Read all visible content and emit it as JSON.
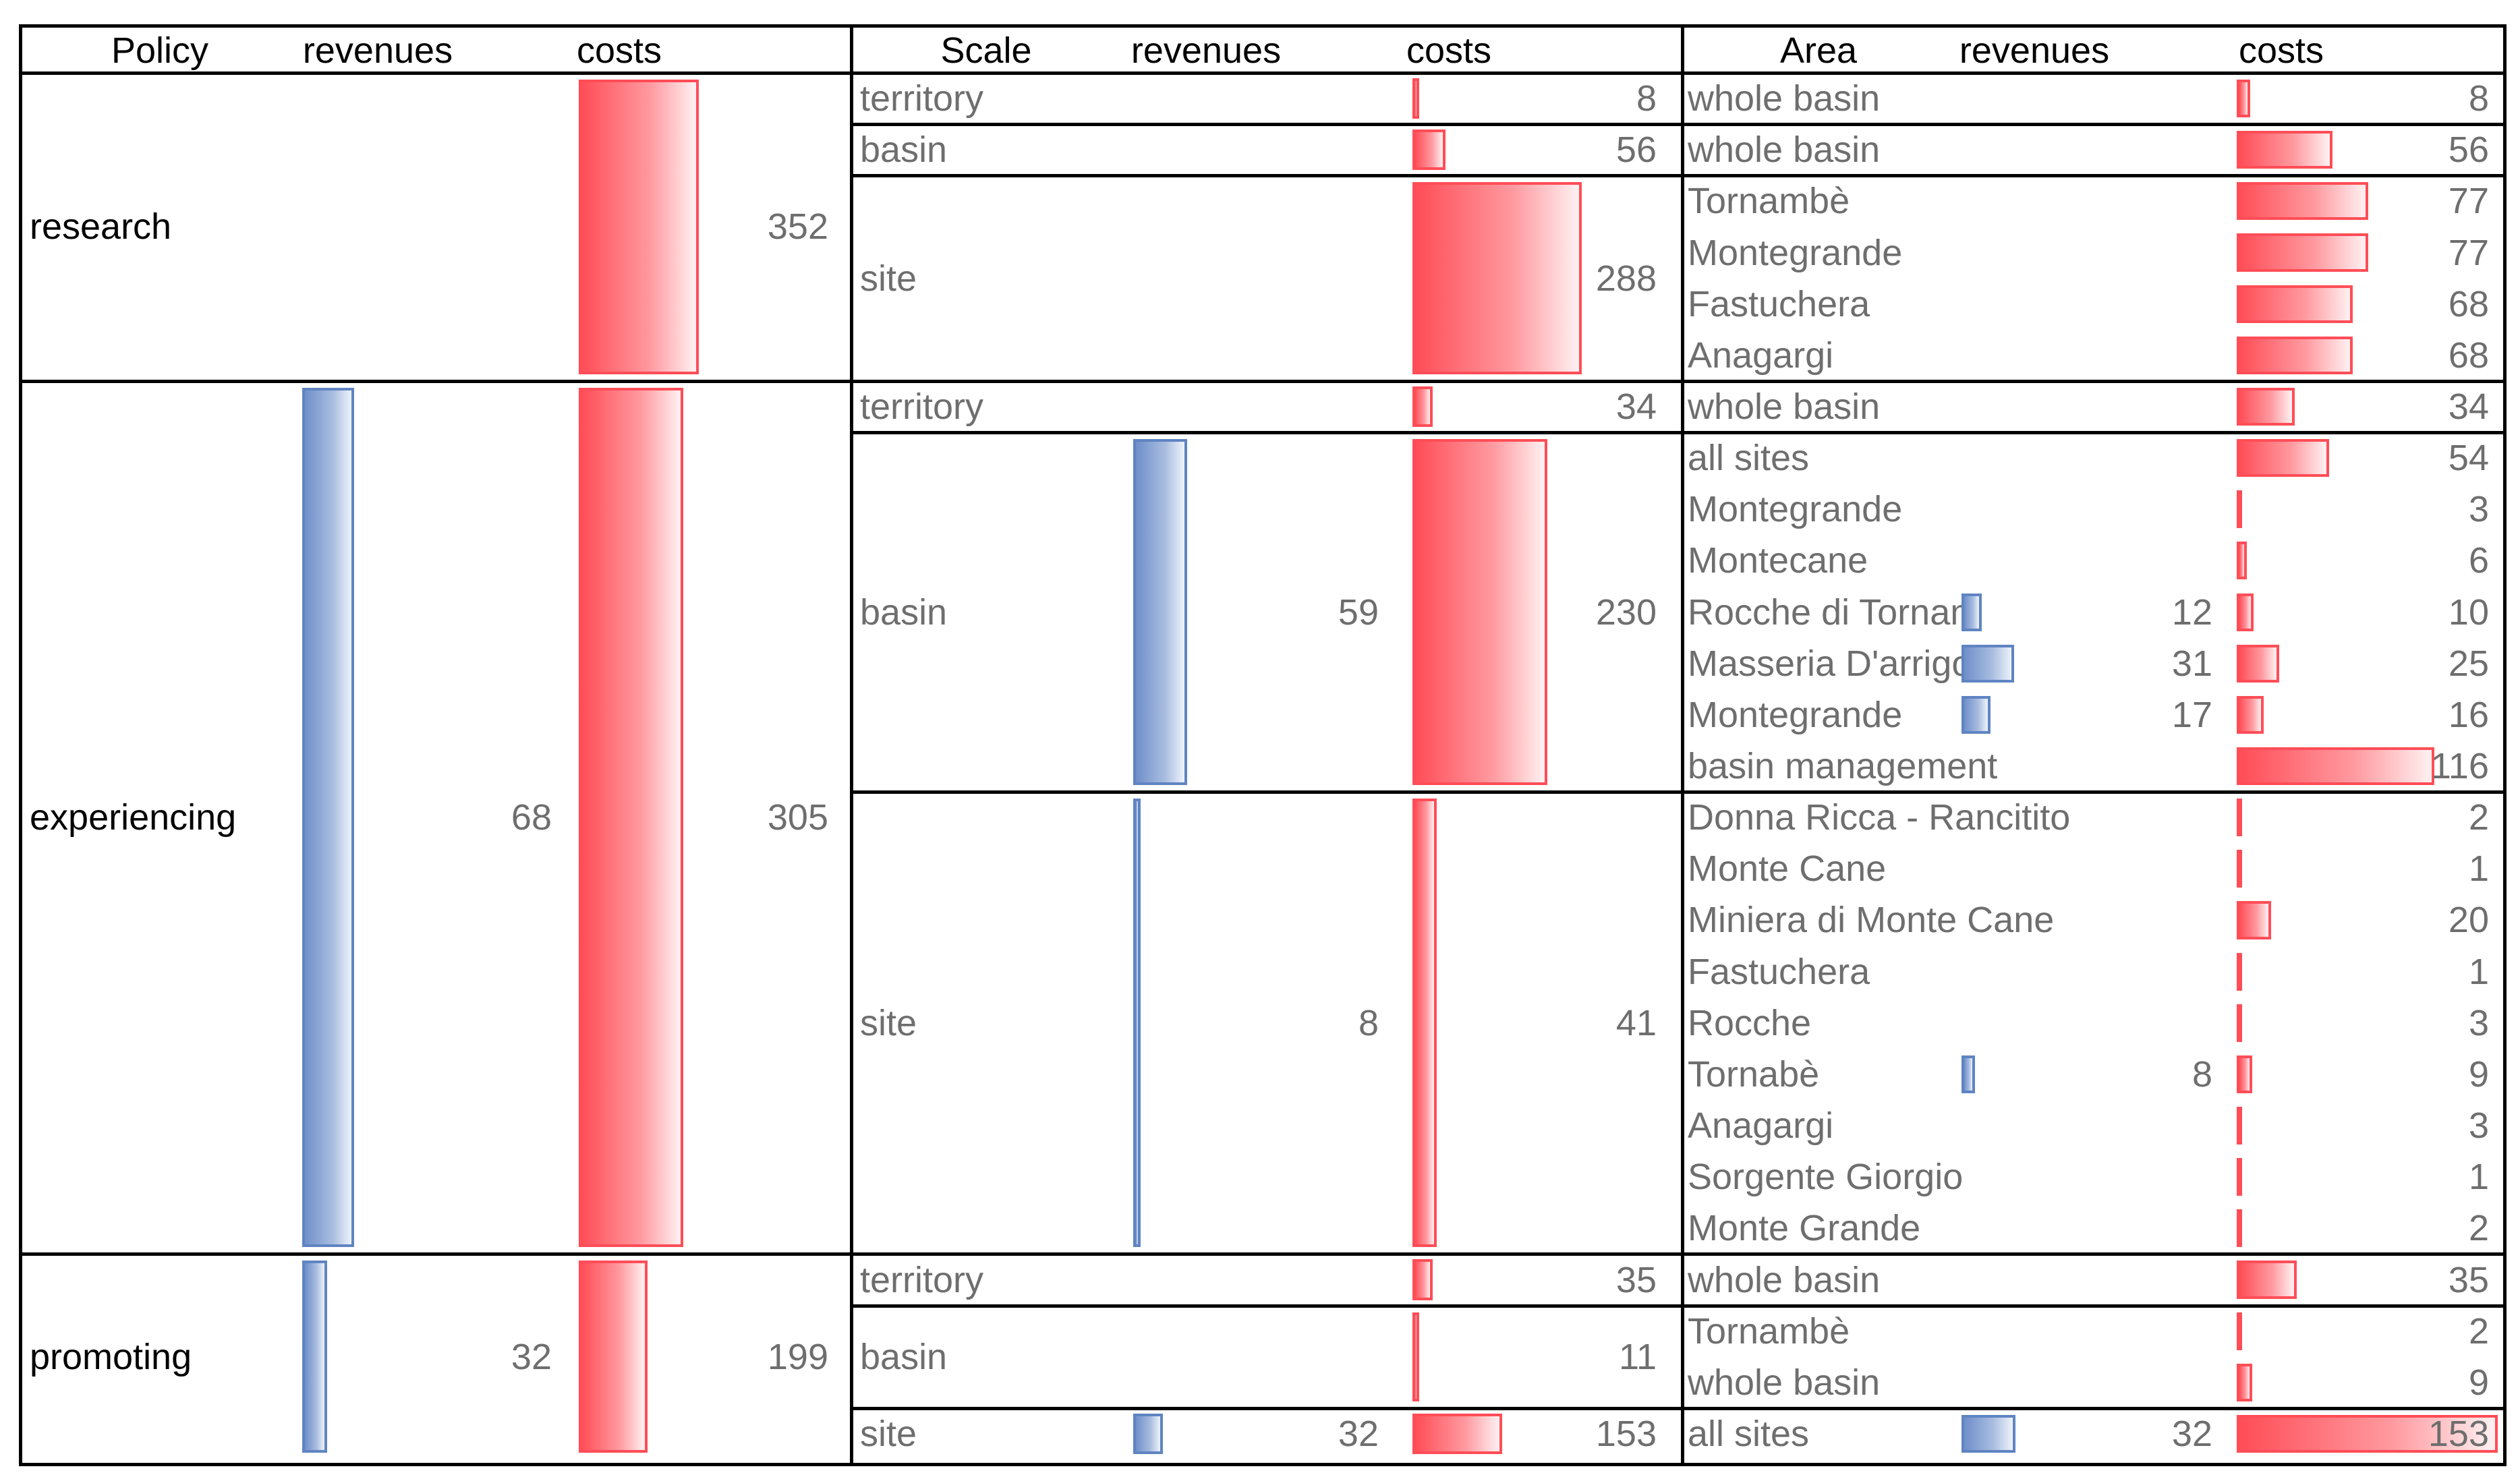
{
  "chart_data": {
    "type": "table",
    "headers": {
      "policy": "Policy",
      "policy_revenues": "revenues",
      "policy_costs": "costs",
      "scale": "Scale",
      "scale_revenues": "revenues",
      "scale_costs": "costs",
      "area": "Area",
      "area_revenues": "revenues",
      "area_costs": "costs"
    },
    "policies": [
      {
        "label": "research",
        "revenues": null,
        "costs": 352
      },
      {
        "label": "experiencing",
        "revenues": 68,
        "costs": 305
      },
      {
        "label": "promoting",
        "revenues": 32,
        "costs": 199
      }
    ],
    "scales": [
      {
        "policy": "research",
        "label": "territory",
        "revenues": null,
        "costs": 8
      },
      {
        "policy": "research",
        "label": "basin",
        "revenues": null,
        "costs": 56
      },
      {
        "policy": "research",
        "label": "site",
        "revenues": null,
        "costs": 288
      },
      {
        "policy": "experiencing",
        "label": "territory",
        "revenues": null,
        "costs": 34
      },
      {
        "policy": "experiencing",
        "label": "basin",
        "revenues": 59,
        "costs": 230
      },
      {
        "policy": "experiencing",
        "label": "site",
        "revenues": 8,
        "costs": 41
      },
      {
        "policy": "promoting",
        "label": "territory",
        "revenues": null,
        "costs": 35
      },
      {
        "policy": "promoting",
        "label": "basin",
        "revenues": null,
        "costs": 11
      },
      {
        "policy": "promoting",
        "label": "site",
        "revenues": 32,
        "costs": 153
      }
    ],
    "areas": [
      {
        "label": "whole basin",
        "revenues": null,
        "costs": 8
      },
      {
        "label": "whole basin",
        "revenues": null,
        "costs": 56
      },
      {
        "label": "Tornambè",
        "revenues": null,
        "costs": 77
      },
      {
        "label": "Montegrande",
        "revenues": null,
        "costs": 77
      },
      {
        "label": "Fastuchera",
        "revenues": null,
        "costs": 68
      },
      {
        "label": "Anagargi",
        "revenues": null,
        "costs": 68
      },
      {
        "label": "whole basin",
        "revenues": null,
        "costs": 34
      },
      {
        "label": "all sites",
        "revenues": null,
        "costs": 54
      },
      {
        "label": "Montegrande",
        "revenues": null,
        "costs": 3
      },
      {
        "label": "Montecane",
        "revenues": null,
        "costs": 6
      },
      {
        "label": "Rocche di Tornam",
        "revenues": 12,
        "costs": 10
      },
      {
        "label": "Masseria D'arrigo",
        "revenues": 31,
        "costs": 25
      },
      {
        "label": "Montegrande",
        "revenues": 17,
        "costs": 16
      },
      {
        "label": "basin management",
        "revenues": null,
        "costs": 116
      },
      {
        "label": "Donna Ricca - Rancitito",
        "revenues": null,
        "costs": 2
      },
      {
        "label": "Monte Cane",
        "revenues": null,
        "costs": 1
      },
      {
        "label": "Miniera di Monte Cane",
        "revenues": null,
        "costs": 20
      },
      {
        "label": "Fastuchera",
        "revenues": null,
        "costs": 1
      },
      {
        "label": "Rocche",
        "revenues": null,
        "costs": 3
      },
      {
        "label": "Tornabè",
        "revenues": 8,
        "costs": 9
      },
      {
        "label": "Anagargi",
        "revenues": null,
        "costs": 3
      },
      {
        "label": "Sorgente Giorgio",
        "revenues": null,
        "costs": 1
      },
      {
        "label": "Monte Grande",
        "revenues": null,
        "costs": 2
      },
      {
        "label": "whole basin",
        "revenues": null,
        "costs": 35
      },
      {
        "label": "Tornambè",
        "revenues": null,
        "costs": 2
      },
      {
        "label": "whole basin",
        "revenues": null,
        "costs": 9
      },
      {
        "label": "all sites",
        "revenues": 32,
        "costs": 153
      }
    ]
  },
  "colors": {
    "cost_bar": "#ff4d57",
    "revenue_bar": "#6f8fca",
    "label_black": "#000000",
    "label_gray": "#6e6e6e",
    "grid": "#000000"
  }
}
